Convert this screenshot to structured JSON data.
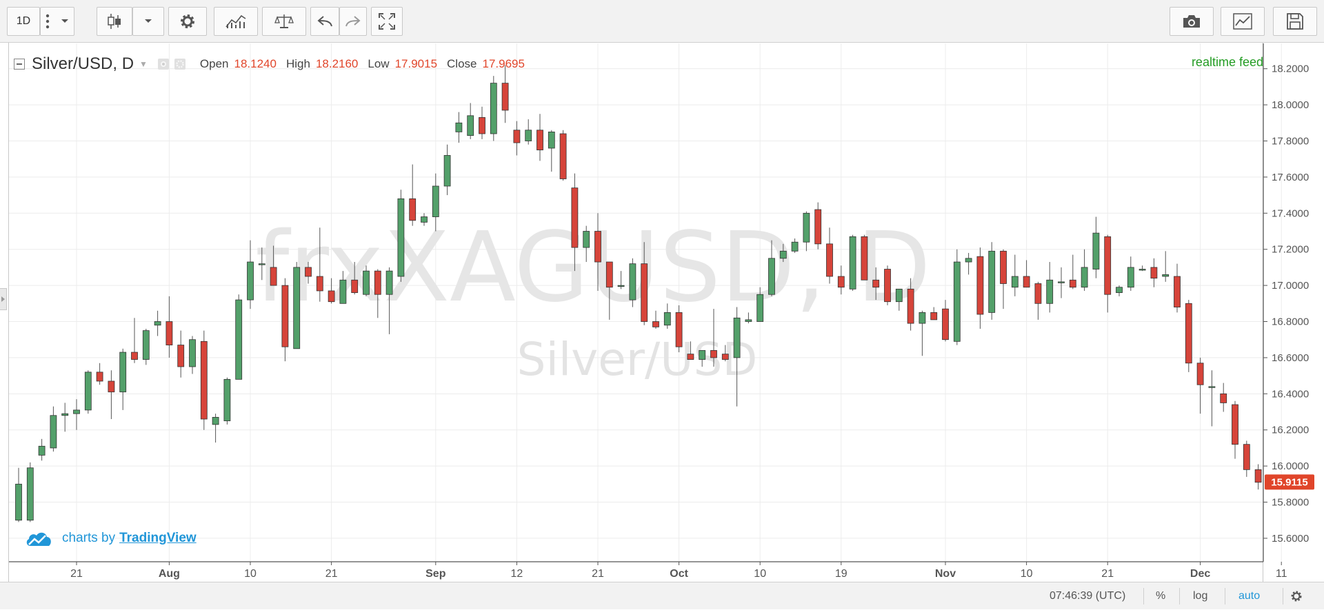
{
  "toolbar": {
    "interval": "1D",
    "icons": [
      "more-dots-icon",
      "chevron-down-icon",
      "candles-icon",
      "chevron-down-icon",
      "gear-icon",
      "indicators-icon",
      "compare-scale-icon",
      "undo-icon",
      "redo-icon",
      "fullscreen-icon",
      "camera-icon",
      "chart-properties-icon",
      "save-icon"
    ]
  },
  "legend": {
    "symbol": "Silver/USD, D",
    "open_label": "Open",
    "open": "18.1240",
    "high_label": "High",
    "high": "18.2160",
    "low_label": "Low",
    "low": "17.9015",
    "close_label": "Close",
    "close": "17.9695"
  },
  "feed": "realtime feed",
  "branding": {
    "prefix": "charts by",
    "name": "TradingView"
  },
  "status_bar": {
    "time": "07:46:39 (UTC)",
    "percent": "%",
    "log": "log",
    "auto": "auto"
  },
  "colors": {
    "up": "#53a06a",
    "down": "#d6443a",
    "price_label": "#e0452a",
    "feed": "#239c23",
    "brand": "#2196d8"
  },
  "chart_data": {
    "type": "candlestick",
    "watermark_symbol": "frxXAGUSD, D",
    "watermark_name": "Silver/USD",
    "last_price": "15.9115",
    "ylim": [
      15.47,
      18.34
    ],
    "y_ticks": [
      "18.2000",
      "18.0000",
      "17.8000",
      "17.6000",
      "17.4000",
      "17.2000",
      "17.0000",
      "16.8000",
      "16.6000",
      "16.4000",
      "16.2000",
      "16.0000",
      "15.8000",
      "15.6000"
    ],
    "x_ticks": [
      {
        "label": "21",
        "i": 5
      },
      {
        "label": "Aug",
        "i": 13
      },
      {
        "label": "10",
        "i": 20
      },
      {
        "label": "21",
        "i": 27
      },
      {
        "label": "Sep",
        "i": 36
      },
      {
        "label": "12",
        "i": 43
      },
      {
        "label": "21",
        "i": 50
      },
      {
        "label": "Oct",
        "i": 57
      },
      {
        "label": "10",
        "i": 64
      },
      {
        "label": "19",
        "i": 71
      },
      {
        "label": "Nov",
        "i": 80
      },
      {
        "label": "10",
        "i": 87
      },
      {
        "label": "21",
        "i": 94
      },
      {
        "label": "Dec",
        "i": 102
      },
      {
        "label": "11",
        "i": 109
      }
    ],
    "ohlc": [
      [
        15.7,
        15.99,
        15.69,
        15.9
      ],
      [
        15.7,
        16.02,
        15.69,
        15.99
      ],
      [
        16.06,
        16.15,
        16.03,
        16.11
      ],
      [
        16.1,
        16.33,
        16.08,
        16.28
      ],
      [
        16.28,
        16.35,
        16.19,
        16.29
      ],
      [
        16.29,
        16.37,
        16.2,
        16.31
      ],
      [
        16.31,
        16.53,
        16.29,
        16.52
      ],
      [
        16.52,
        16.57,
        16.45,
        16.47
      ],
      [
        16.47,
        16.53,
        16.26,
        16.41
      ],
      [
        16.41,
        16.65,
        16.31,
        16.63
      ],
      [
        16.63,
        16.82,
        16.57,
        16.59
      ],
      [
        16.59,
        16.76,
        16.56,
        16.75
      ],
      [
        16.78,
        16.86,
        16.72,
        16.8
      ],
      [
        16.8,
        16.94,
        16.6,
        16.67
      ],
      [
        16.67,
        16.75,
        16.49,
        16.55
      ],
      [
        16.55,
        16.72,
        16.51,
        16.7
      ],
      [
        16.69,
        16.75,
        16.2,
        16.26
      ],
      [
        16.23,
        16.29,
        16.13,
        16.27
      ],
      [
        16.25,
        16.49,
        16.23,
        16.48
      ],
      [
        16.48,
        16.95,
        16.48,
        16.92
      ],
      [
        16.92,
        17.25,
        16.87,
        17.13
      ],
      [
        17.12,
        17.21,
        17.03,
        17.12
      ],
      [
        17.1,
        17.22,
        17.02,
        17.0
      ],
      [
        17.0,
        17.04,
        16.58,
        16.66
      ],
      [
        16.65,
        17.13,
        16.65,
        17.1
      ],
      [
        17.1,
        17.13,
        17.01,
        17.05
      ],
      [
        17.05,
        17.32,
        16.91,
        16.97
      ],
      [
        16.97,
        17.04,
        16.9,
        16.91
      ],
      [
        16.9,
        17.08,
        16.9,
        17.03
      ],
      [
        17.03,
        17.13,
        16.95,
        16.96
      ],
      [
        16.95,
        17.11,
        16.94,
        17.08
      ],
      [
        17.08,
        17.09,
        16.82,
        16.95
      ],
      [
        16.95,
        17.1,
        16.73,
        17.08
      ],
      [
        17.05,
        17.53,
        17.02,
        17.48
      ],
      [
        17.48,
        17.67,
        17.33,
        17.36
      ],
      [
        17.35,
        17.4,
        17.33,
        17.38
      ],
      [
        17.38,
        17.62,
        17.3,
        17.55
      ],
      [
        17.55,
        17.78,
        17.5,
        17.72
      ],
      [
        17.85,
        17.96,
        17.79,
        17.9
      ],
      [
        17.83,
        18.01,
        17.81,
        17.94
      ],
      [
        17.93,
        17.99,
        17.81,
        17.84
      ],
      [
        17.84,
        18.16,
        17.8,
        18.12
      ],
      [
        18.12,
        18.22,
        17.9,
        17.97
      ],
      [
        17.86,
        17.91,
        17.72,
        17.79
      ],
      [
        17.8,
        17.92,
        17.78,
        17.86
      ],
      [
        17.86,
        17.95,
        17.69,
        17.75
      ],
      [
        17.76,
        17.86,
        17.63,
        17.85
      ],
      [
        17.84,
        17.86,
        17.58,
        17.59
      ],
      [
        17.54,
        17.62,
        17.08,
        17.21
      ],
      [
        17.21,
        17.33,
        17.13,
        17.3
      ],
      [
        17.3,
        17.4,
        16.97,
        17.13
      ],
      [
        17.13,
        17.13,
        16.81,
        16.99
      ],
      [
        17.0,
        17.08,
        16.98,
        17.0
      ],
      [
        16.92,
        17.15,
        16.88,
        17.12
      ],
      [
        17.12,
        17.24,
        16.78,
        16.8
      ],
      [
        16.8,
        16.86,
        16.76,
        16.77
      ],
      [
        16.78,
        16.9,
        16.76,
        16.85
      ],
      [
        16.85,
        16.89,
        16.63,
        16.66
      ],
      [
        16.62,
        16.69,
        16.59,
        16.59
      ],
      [
        16.59,
        16.64,
        16.55,
        16.64
      ],
      [
        16.64,
        16.87,
        16.55,
        16.6
      ],
      [
        16.62,
        16.67,
        16.58,
        16.59
      ],
      [
        16.6,
        16.88,
        16.33,
        16.82
      ],
      [
        16.8,
        16.85,
        16.79,
        16.81
      ],
      [
        16.8,
        16.99,
        16.8,
        16.95
      ],
      [
        16.95,
        17.25,
        16.94,
        17.15
      ],
      [
        17.15,
        17.23,
        17.13,
        17.19
      ],
      [
        17.19,
        17.26,
        17.18,
        17.24
      ],
      [
        17.24,
        17.41,
        17.19,
        17.4
      ],
      [
        17.42,
        17.46,
        17.2,
        17.23
      ],
      [
        17.23,
        17.32,
        17.01,
        17.05
      ],
      [
        17.05,
        17.11,
        16.95,
        16.99
      ],
      [
        16.98,
        17.28,
        16.97,
        17.27
      ],
      [
        17.27,
        17.28,
        17.03,
        17.03
      ],
      [
        17.03,
        17.1,
        16.92,
        16.99
      ],
      [
        17.09,
        17.11,
        16.89,
        16.91
      ],
      [
        16.91,
        16.98,
        16.86,
        16.98
      ],
      [
        16.98,
        17.04,
        16.75,
        16.79
      ],
      [
        16.79,
        16.86,
        16.61,
        16.85
      ],
      [
        16.85,
        16.88,
        16.83,
        16.81
      ],
      [
        16.87,
        16.92,
        16.69,
        16.7
      ],
      [
        16.69,
        17.2,
        16.67,
        17.13
      ],
      [
        17.13,
        17.18,
        17.06,
        17.15
      ],
      [
        17.16,
        17.21,
        16.76,
        16.84
      ],
      [
        16.85,
        17.24,
        16.81,
        17.19
      ],
      [
        17.19,
        17.2,
        16.87,
        17.01
      ],
      [
        16.99,
        17.17,
        16.94,
        17.05
      ],
      [
        17.05,
        17.14,
        16.99,
        16.99
      ],
      [
        17.01,
        17.02,
        16.81,
        16.9
      ],
      [
        16.9,
        17.13,
        16.85,
        17.03
      ],
      [
        17.02,
        17.1,
        16.93,
        17.02
      ],
      [
        17.03,
        17.17,
        16.98,
        16.99
      ],
      [
        16.99,
        17.2,
        16.97,
        17.1
      ],
      [
        17.09,
        17.38,
        17.04,
        17.29
      ],
      [
        17.27,
        17.28,
        16.85,
        16.95
      ],
      [
        16.96,
        17.0,
        16.94,
        16.99
      ],
      [
        16.99,
        17.16,
        16.97,
        17.1
      ],
      [
        17.09,
        17.11,
        17.08,
        17.09
      ],
      [
        17.1,
        17.15,
        16.99,
        17.04
      ],
      [
        17.05,
        17.19,
        17.02,
        17.06
      ],
      [
        17.05,
        17.12,
        16.85,
        16.88
      ],
      [
        16.9,
        16.92,
        16.52,
        16.57
      ],
      [
        16.57,
        16.6,
        16.29,
        16.45
      ],
      [
        16.44,
        16.53,
        16.22,
        16.44
      ],
      [
        16.4,
        16.46,
        16.3,
        16.35
      ],
      [
        16.34,
        16.36,
        16.04,
        16.12
      ],
      [
        16.12,
        16.14,
        15.94,
        15.98
      ],
      [
        15.98,
        16.01,
        15.87,
        15.91
      ]
    ]
  }
}
